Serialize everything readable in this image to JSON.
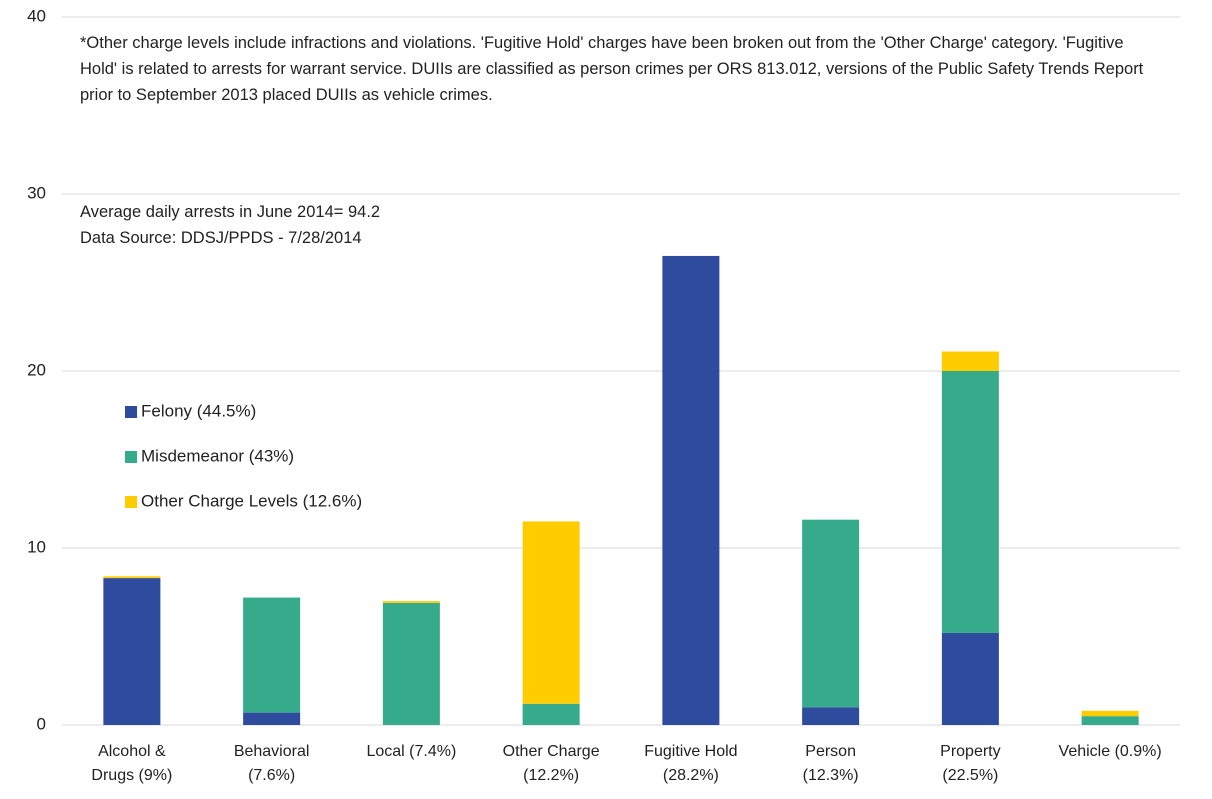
{
  "chart_data": {
    "type": "stacked_bar",
    "note": "*Other charge levels include infractions and violations.  'Fugitive Hold' charges have been broken out from the 'Other Charge' category. 'Fugitive Hold' is related to arrests for warrant service. DUIIs are classified as person crimes per ORS 813.012,  versions of the Public Safety Trends Report prior to September 2013 placed DUIIs as vehicle crimes.",
    "annotations": [
      "Average daily arrests in June 2014= 94.2",
      "Data Source: DDSJ/PPDS - 7/28/2014"
    ],
    "categories": [
      "Alcohol &\nDrugs (9%)",
      "Behavioral\n(7.6%)",
      "Local (7.4%)",
      "Other Charge\n(12.2%)",
      "Fugitive Hold\n(28.2%)",
      "Person\n(12.3%)",
      "Property\n(22.5%)",
      "Vehicle (0.9%)"
    ],
    "series": [
      {
        "name": "Felony (44.5%)",
        "color": "#2e4b9e",
        "values": [
          8.3,
          0.7,
          0,
          0,
          26.5,
          1.0,
          5.2,
          0
        ]
      },
      {
        "name": "Misdemeanor (43%)",
        "color": "#36ab8b",
        "values": [
          0,
          6.5,
          6.9,
          1.2,
          0,
          10.6,
          14.8,
          0.5
        ]
      },
      {
        "name": "Other Charge Levels (12.6%)",
        "color": "#ffcc00",
        "values": [
          0.1,
          0,
          0.1,
          10.3,
          0,
          0,
          1.1,
          0.3
        ]
      }
    ],
    "ylim": [
      0,
      40
    ],
    "yticks": [
      0,
      10,
      20,
      30,
      40
    ],
    "grid": true
  }
}
